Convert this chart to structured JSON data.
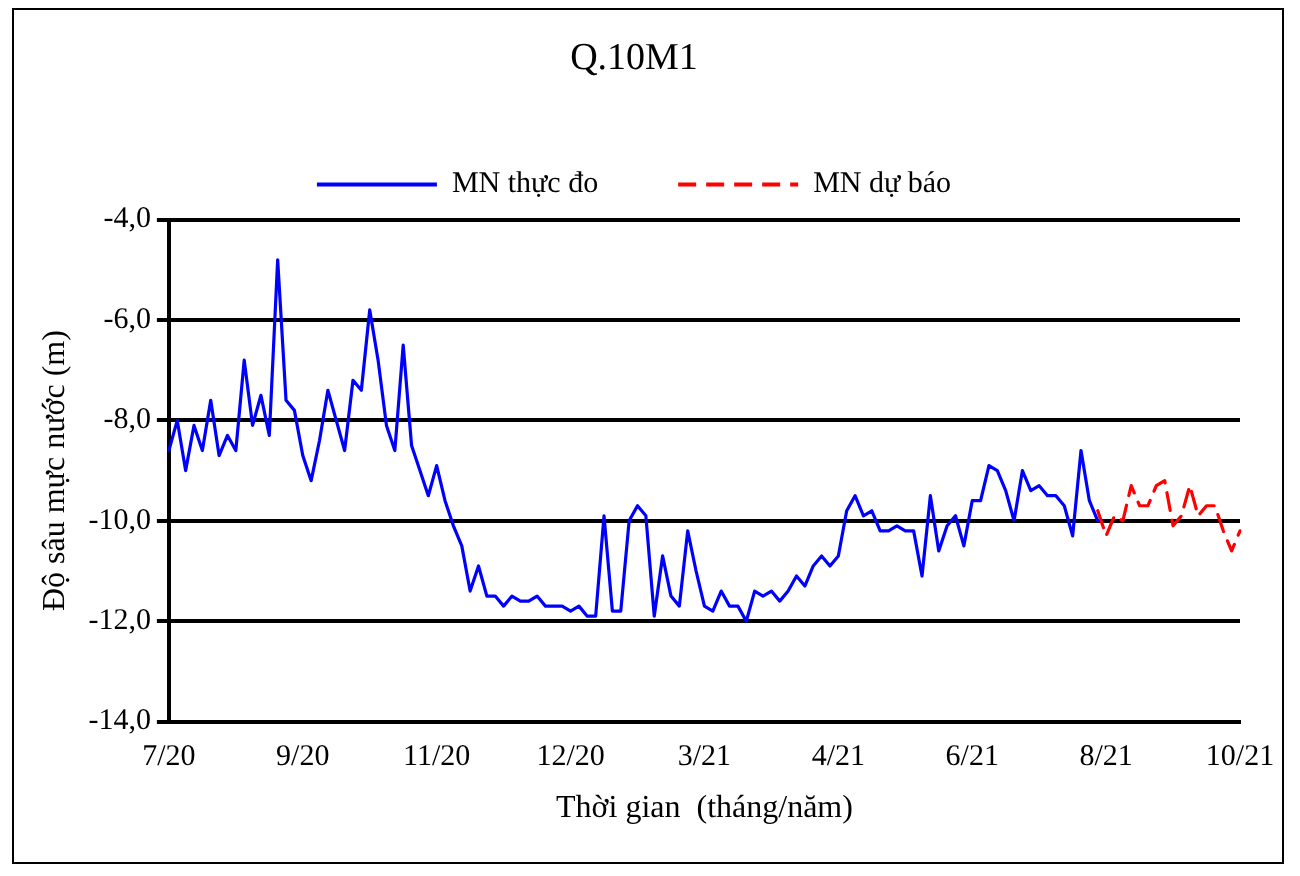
{
  "chart_data": {
    "type": "line",
    "title": "Q.10M1",
    "xlabel": "Thời gian  (tháng/năm)",
    "ylabel": "Độ sâu mực nước (m)",
    "categories": [
      "7/20",
      null,
      null,
      null,
      null,
      null,
      null,
      null,
      null,
      null,
      null,
      null,
      null,
      null,
      null,
      null,
      "9/20",
      null,
      null,
      null,
      null,
      null,
      null,
      null,
      null,
      null,
      null,
      null,
      null,
      null,
      null,
      null,
      "11/20",
      null,
      null,
      null,
      null,
      null,
      null,
      null,
      null,
      null,
      null,
      null,
      null,
      null,
      null,
      null,
      "12/20",
      null,
      null,
      null,
      null,
      null,
      null,
      null,
      null,
      null,
      null,
      null,
      null,
      null,
      null,
      null,
      "3/21",
      null,
      null,
      null,
      null,
      null,
      null,
      null,
      null,
      null,
      null,
      null,
      null,
      null,
      null,
      null,
      "4/21",
      null,
      null,
      null,
      null,
      null,
      null,
      null,
      null,
      null,
      null,
      null,
      null,
      null,
      null,
      null,
      "6/21",
      null,
      null,
      null,
      null,
      null,
      null,
      null,
      null,
      null,
      null,
      null,
      null,
      null,
      null,
      null,
      "8/21",
      null,
      null,
      null,
      null,
      null,
      null,
      null,
      null,
      null,
      null,
      null,
      null,
      null,
      null,
      null,
      "10/21"
    ],
    "ylim": [
      -14,
      -4
    ],
    "yticks": [
      {
        "value": -14,
        "label": "-14,0"
      },
      {
        "value": -12,
        "label": "-12,0"
      },
      {
        "value": -10,
        "label": "-10,0"
      },
      {
        "value": -8,
        "label": "-8,0"
      },
      {
        "value": -6,
        "label": "-6,0"
      },
      {
        "value": -4,
        "label": "-4,0"
      }
    ],
    "grid": "y",
    "legend": "top",
    "marker": "none",
    "series": [
      {
        "name": "MN thực đo",
        "color": "#0000ff",
        "line_style": "solid",
        "values": [
          -8.6,
          -8.0,
          -9.0,
          -8.1,
          -8.6,
          -7.6,
          -8.7,
          -8.3,
          -8.6,
          -6.8,
          -8.1,
          -7.5,
          -8.3,
          -4.8,
          -7.6,
          -7.8,
          -8.7,
          -9.2,
          -8.4,
          -7.4,
          -8.0,
          -8.6,
          -7.2,
          -7.4,
          -5.8,
          -6.8,
          -8.1,
          -8.6,
          -6.5,
          -8.5,
          -9.0,
          -9.5,
          -8.9,
          -9.6,
          -10.1,
          -10.5,
          -11.4,
          -10.9,
          -11.5,
          -11.5,
          -11.7,
          -11.5,
          -11.6,
          -11.6,
          -11.5,
          -11.7,
          -11.7,
          -11.7,
          -11.8,
          -11.7,
          -11.9,
          -11.9,
          -9.9,
          -11.8,
          -11.8,
          -10.0,
          -9.7,
          -9.9,
          -11.9,
          -10.7,
          -11.5,
          -11.7,
          -10.2,
          -11.0,
          -11.7,
          -11.8,
          -11.4,
          -11.7,
          -11.7,
          -12.0,
          -11.4,
          -11.5,
          -11.4,
          -11.6,
          -11.4,
          -11.1,
          -11.3,
          -10.9,
          -10.7,
          -10.9,
          -10.7,
          -9.8,
          -9.5,
          -9.9,
          -9.8,
          -10.2,
          -10.2,
          -10.1,
          -10.2,
          -10.2,
          -11.1,
          -9.5,
          -10.6,
          -10.1,
          -9.9,
          -10.5,
          -9.6,
          -9.6,
          -8.9,
          -9.0,
          -9.4,
          -10.0,
          -9.0,
          -9.4,
          -9.3,
          -9.5,
          -9.5,
          -9.7,
          -10.3,
          -8.6,
          -9.6,
          -10.0,
          null,
          null,
          null,
          null,
          null,
          null,
          null,
          null,
          null,
          null,
          null,
          null,
          null,
          null,
          null,
          null,
          null
        ]
      },
      {
        "name": "MN dự báo",
        "color": "#ff0000",
        "line_style": "dashed",
        "values": [
          null,
          null,
          null,
          null,
          null,
          null,
          null,
          null,
          null,
          null,
          null,
          null,
          null,
          null,
          null,
          null,
          null,
          null,
          null,
          null,
          null,
          null,
          null,
          null,
          null,
          null,
          null,
          null,
          null,
          null,
          null,
          null,
          null,
          null,
          null,
          null,
          null,
          null,
          null,
          null,
          null,
          null,
          null,
          null,
          null,
          null,
          null,
          null,
          null,
          null,
          null,
          null,
          null,
          null,
          null,
          null,
          null,
          null,
          null,
          null,
          null,
          null,
          null,
          null,
          null,
          null,
          null,
          null,
          null,
          null,
          null,
          null,
          null,
          null,
          null,
          null,
          null,
          null,
          null,
          null,
          null,
          null,
          null,
          null,
          null,
          null,
          null,
          null,
          null,
          null,
          null,
          null,
          null,
          null,
          null,
          null,
          null,
          null,
          null,
          null,
          null,
          null,
          null,
          null,
          null,
          null,
          null,
          null,
          null,
          null,
          null,
          -9.8,
          -10.3,
          -9.9,
          -10.0,
          -9.3,
          -9.7,
          -9.7,
          -9.3,
          -9.2,
          -10.1,
          -9.9,
          -9.3,
          -9.9,
          -9.7,
          -9.7,
          -10.2,
          -10.6,
          -10.2
        ]
      }
    ]
  }
}
